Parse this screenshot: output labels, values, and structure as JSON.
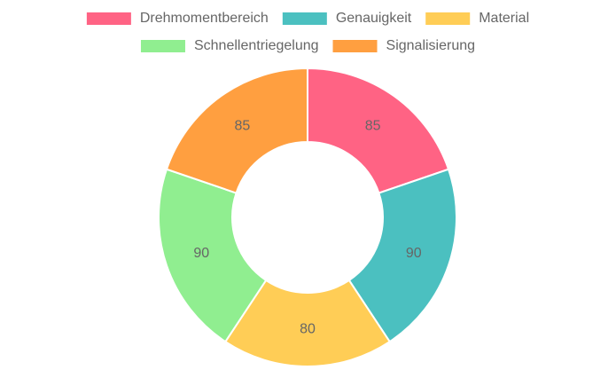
{
  "chart_data": {
    "type": "doughnut",
    "categories": [
      "Drehmomentbereich",
      "Genauigkeit",
      "Material",
      "Schnellentriegelung",
      "Signalisierung"
    ],
    "values": [
      85,
      90,
      80,
      90,
      85
    ],
    "colors": [
      "#ff6384",
      "#4bc0c0",
      "#ffcd56",
      "#90ee90",
      "#ff9f40"
    ],
    "legend": "top"
  }
}
